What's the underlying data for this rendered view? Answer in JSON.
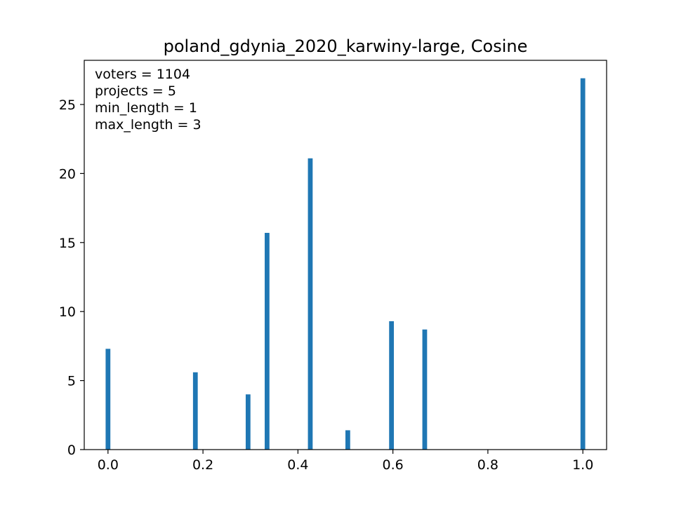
{
  "chart_data": {
    "type": "bar",
    "title": "poland_gdynia_2020_karwiny-large, Cosine",
    "xlabel": "",
    "ylabel": "",
    "xlim": [
      -0.05,
      1.05
    ],
    "ylim": [
      0,
      28.2
    ],
    "xticks": [
      0.0,
      0.2,
      0.4,
      0.6,
      0.8,
      1.0
    ],
    "xtick_labels": [
      "0.0",
      "0.2",
      "0.4",
      "0.6",
      "0.8",
      "1.0"
    ],
    "yticks": [
      0,
      5,
      10,
      15,
      20,
      25
    ],
    "ytick_labels": [
      "0",
      "5",
      "10",
      "15",
      "20",
      "25"
    ],
    "bar_width": 0.01,
    "bar_color": "#1f77b4",
    "grid": false,
    "bars": [
      {
        "x": 0.0,
        "value": 7.3
      },
      {
        "x": 0.184,
        "value": 5.6
      },
      {
        "x": 0.295,
        "value": 4.0
      },
      {
        "x": 0.335,
        "value": 15.7
      },
      {
        "x": 0.426,
        "value": 21.1
      },
      {
        "x": 0.505,
        "value": 1.4
      },
      {
        "x": 0.597,
        "value": 9.3
      },
      {
        "x": 0.667,
        "value": 8.7
      },
      {
        "x": 1.0,
        "value": 26.9
      }
    ],
    "annotations": [
      "voters = 1104",
      "projects = 5",
      "min_length = 1",
      "max_length = 3"
    ]
  }
}
